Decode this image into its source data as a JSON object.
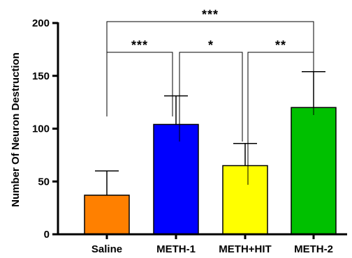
{
  "chart_data": {
    "type": "bar",
    "title": "",
    "xlabel": "",
    "ylabel": "Number Of Neuron Destruction",
    "ylim": [
      0,
      200
    ],
    "yticks": [
      0,
      50,
      100,
      150,
      200
    ],
    "grid": false,
    "categories": [
      "Saline",
      "METH-1",
      "METH+HIT",
      "METH-2"
    ],
    "values": [
      37,
      104,
      65,
      120
    ],
    "errors": [
      23,
      27,
      21,
      34
    ],
    "colors": [
      "#ff8000",
      "#0000ff",
      "#ffff00",
      "#00c000"
    ],
    "comparisons": [
      {
        "from": 0,
        "to": 3,
        "label": "***"
      },
      {
        "from": 0,
        "to": 1,
        "label": "***"
      },
      {
        "from": 1,
        "to": 2,
        "label": "*"
      },
      {
        "from": 2,
        "to": 3,
        "label": "**"
      }
    ]
  }
}
